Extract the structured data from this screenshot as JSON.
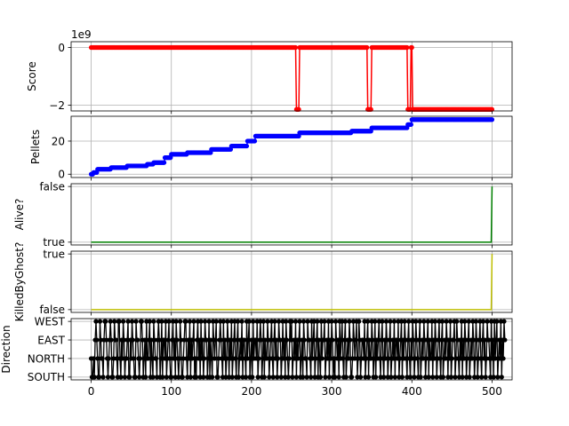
{
  "chart_data": [
    {
      "name": "score",
      "type": "line",
      "ylabel": "Score",
      "offset_label": "1e9",
      "yticks": [
        {
          "v": 0,
          "label": "0"
        },
        {
          "v": -2,
          "label": "−2"
        }
      ],
      "ylim": [
        -2.2,
        0.2
      ],
      "xlim": [
        -25,
        525
      ],
      "xticks": [
        0,
        100,
        200,
        300,
        400,
        500
      ],
      "show_xticklabels": false,
      "grid": true,
      "color": "#ff0000",
      "marker": true,
      "x_max": 500,
      "segments": [
        {
          "x": [
            0,
            255
          ],
          "y": [
            0,
            0
          ]
        },
        {
          "x": [
            256,
            259
          ],
          "y": [
            -2.147,
            -2.147
          ]
        },
        {
          "x": [
            260,
            344
          ],
          "y": [
            0,
            0
          ]
        },
        {
          "x": [
            345,
            349
          ],
          "y": [
            -2.147,
            -2.147
          ]
        },
        {
          "x": [
            350,
            394
          ],
          "y": [
            0,
            0
          ]
        },
        {
          "x": [
            395,
            398
          ],
          "y": [
            -2.147,
            -2.147
          ]
        },
        {
          "x": [
            399,
            400
          ],
          "y": [
            0,
            0
          ]
        },
        {
          "x": [
            401,
            500
          ],
          "y": [
            -2.147,
            -2.147
          ]
        }
      ]
    },
    {
      "name": "pellets",
      "type": "line",
      "ylabel": "Pellets",
      "yticks": [
        {
          "v": 0,
          "label": "0"
        },
        {
          "v": 20,
          "label": "20"
        }
      ],
      "ylim": [
        -2,
        35
      ],
      "xlim": [
        -25,
        525
      ],
      "xticks": [
        0,
        100,
        200,
        300,
        400,
        500
      ],
      "show_xticklabels": false,
      "grid": true,
      "color": "#0000ff",
      "marker": true,
      "x_max": 500,
      "steps": [
        {
          "x": 0,
          "y": 0
        },
        {
          "x": 3,
          "y": 1
        },
        {
          "x": 8,
          "y": 3
        },
        {
          "x": 25,
          "y": 4
        },
        {
          "x": 45,
          "y": 5
        },
        {
          "x": 70,
          "y": 6
        },
        {
          "x": 78,
          "y": 7
        },
        {
          "x": 92,
          "y": 10
        },
        {
          "x": 100,
          "y": 12
        },
        {
          "x": 120,
          "y": 13
        },
        {
          "x": 150,
          "y": 15
        },
        {
          "x": 175,
          "y": 17
        },
        {
          "x": 195,
          "y": 20
        },
        {
          "x": 205,
          "y": 23
        },
        {
          "x": 260,
          "y": 25
        },
        {
          "x": 325,
          "y": 26
        },
        {
          "x": 350,
          "y": 28
        },
        {
          "x": 395,
          "y": 30
        },
        {
          "x": 400,
          "y": 33
        }
      ]
    },
    {
      "name": "alive",
      "type": "line",
      "ylabel": "Alive?",
      "yticks": [
        {
          "v": 0,
          "label": "true"
        },
        {
          "v": 1,
          "label": "false"
        }
      ],
      "ylim": [
        -0.05,
        1.05
      ],
      "xlim": [
        -25,
        525
      ],
      "xticks": [
        0,
        100,
        200,
        300,
        400,
        500
      ],
      "show_xticklabels": false,
      "grid": true,
      "color": "#008000",
      "marker": false,
      "points": [
        {
          "x": 0,
          "y": 0
        },
        {
          "x": 499,
          "y": 0
        },
        {
          "x": 500,
          "y": 1
        }
      ]
    },
    {
      "name": "killed",
      "type": "line",
      "ylabel": "KilledByGhost?",
      "yticks": [
        {
          "v": 0,
          "label": "false"
        },
        {
          "v": 1,
          "label": "true"
        }
      ],
      "ylim": [
        -0.05,
        1.05
      ],
      "xlim": [
        -25,
        525
      ],
      "xticks": [
        0,
        100,
        200,
        300,
        400,
        500
      ],
      "show_xticklabels": false,
      "grid": true,
      "color": "#bfbf00",
      "marker": false,
      "points": [
        {
          "x": 0,
          "y": 0
        },
        {
          "x": 499,
          "y": 0
        },
        {
          "x": 500,
          "y": 1
        }
      ]
    },
    {
      "name": "direction",
      "type": "line",
      "ylabel": "Direction",
      "yticks": [
        {
          "v": 0,
          "label": "SOUTH"
        },
        {
          "v": 1,
          "label": "NORTH"
        },
        {
          "v": 2,
          "label": "EAST"
        },
        {
          "v": 3,
          "label": "WEST"
        }
      ],
      "ylim": [
        -0.15,
        3.15
      ],
      "xlim": [
        -25,
        525
      ],
      "xticks": [
        0,
        100,
        200,
        300,
        400,
        500
      ],
      "show_xticklabels": true,
      "xticklabels": [
        "0",
        "100",
        "200",
        "300",
        "400",
        "500"
      ],
      "grid": true,
      "color": "#000000",
      "marker": true,
      "values": [
        1,
        0,
        0,
        1,
        0,
        2,
        3,
        2,
        1,
        0,
        0,
        3,
        2,
        1,
        1,
        0,
        2,
        3,
        3,
        2,
        1,
        0,
        1,
        2,
        3,
        2,
        0,
        0,
        1,
        3,
        2,
        2,
        1,
        0,
        3,
        3,
        1,
        0,
        2,
        1,
        3,
        2,
        0,
        1,
        1,
        2,
        3,
        0,
        0,
        2,
        1,
        3,
        2,
        1,
        0,
        0,
        3,
        2,
        2,
        1,
        0,
        1,
        3,
        3,
        2,
        0,
        1,
        2,
        0,
        3,
        1,
        1,
        2,
        3,
        0,
        2,
        1,
        0,
        3,
        2,
        1,
        1,
        0,
        2,
        3,
        2,
        0,
        1,
        3,
        0,
        2,
        2,
        1,
        3,
        0,
        1,
        2,
        3,
        1,
        0,
        0,
        2,
        3,
        1,
        2,
        0,
        3,
        2,
        1,
        0,
        1,
        3,
        2,
        0,
        0,
        1,
        2,
        3,
        3,
        1,
        0,
        2,
        1,
        3,
        0,
        2,
        1,
        2,
        3,
        0,
        1,
        0,
        2,
        3,
        1,
        2,
        0,
        3,
        1,
        2,
        0,
        1,
        3,
        2,
        2,
        0,
        1,
        3,
        0,
        2,
        1,
        0,
        3,
        2,
        1,
        2,
        3,
        0,
        0,
        1,
        2,
        3,
        2,
        1,
        0,
        3,
        1,
        2,
        0,
        1,
        3,
        2,
        0,
        2,
        1,
        3,
        0,
        1,
        2,
        3,
        1,
        0,
        2,
        3,
        0,
        1,
        2,
        1,
        3,
        0,
        2,
        2,
        1,
        0,
        3,
        1,
        2,
        3,
        0,
        1,
        2,
        0,
        3,
        1,
        2,
        2,
        1,
        3,
        0,
        1,
        2,
        3,
        2,
        0,
        1,
        3,
        0,
        2,
        1,
        1,
        3,
        2,
        0,
        1,
        2,
        3,
        1,
        0,
        2,
        3,
        1,
        2,
        0,
        1,
        3,
        2,
        2,
        0,
        1,
        3,
        1,
        2,
        0,
        3,
        2,
        1,
        0,
        1,
        3,
        2,
        3,
        0,
        1,
        2,
        1,
        3,
        0,
        2,
        1,
        2,
        3,
        0,
        1,
        2,
        0,
        3,
        2,
        1,
        1,
        0,
        3,
        2,
        2,
        1,
        0,
        3,
        1,
        2,
        3,
        0,
        1,
        2,
        3,
        0,
        2,
        1,
        0,
        3,
        1,
        2,
        2,
        3,
        0,
        1,
        2,
        1,
        3,
        0,
        2,
        1,
        3,
        2,
        0,
        1,
        0,
        3,
        2,
        1,
        2,
        0,
        3,
        1,
        2,
        3,
        1,
        0,
        2,
        3,
        0,
        1,
        2,
        1,
        3,
        2,
        0,
        0,
        1,
        3,
        2,
        1,
        2,
        3,
        0,
        1,
        3,
        2,
        0,
        1,
        2,
        2,
        1,
        3,
        0,
        1,
        2,
        3,
        0,
        2,
        1,
        1,
        3,
        2,
        0,
        1,
        3,
        0,
        2,
        1,
        2,
        3,
        1,
        0,
        2,
        3,
        1,
        0,
        2,
        1,
        3,
        2,
        0,
        1,
        2,
        3,
        0,
        1,
        2,
        1,
        3,
        0,
        2,
        2,
        1,
        3,
        0,
        1,
        2,
        3,
        0,
        2,
        1,
        3,
        2,
        1,
        0,
        2,
        3,
        1,
        0,
        2,
        1,
        3,
        2,
        0,
        1,
        3,
        2,
        1,
        0,
        2,
        3,
        0,
        1,
        2,
        1,
        3,
        2,
        0,
        1,
        2,
        3,
        0,
        2,
        1,
        1,
        3,
        0,
        2,
        1,
        3,
        2,
        0,
        1,
        2,
        3,
        1,
        0,
        2,
        3,
        0,
        1,
        2,
        1,
        3,
        2,
        0,
        2,
        1,
        3,
        0,
        1,
        2,
        2,
        3,
        0,
        1,
        3,
        2,
        1,
        0,
        2,
        1,
        3,
        0,
        2,
        1,
        3,
        2,
        0,
        1,
        2,
        3,
        0,
        1,
        2,
        1,
        3,
        2,
        0,
        1,
        3,
        2,
        0,
        1,
        2,
        3,
        1,
        0,
        2,
        3,
        1,
        2,
        0,
        1,
        3,
        2,
        2,
        1,
        0,
        3,
        1,
        2,
        0,
        3,
        1,
        2,
        3,
        0,
        1,
        2,
        1,
        3,
        0,
        2,
        1,
        3,
        2
      ]
    }
  ]
}
